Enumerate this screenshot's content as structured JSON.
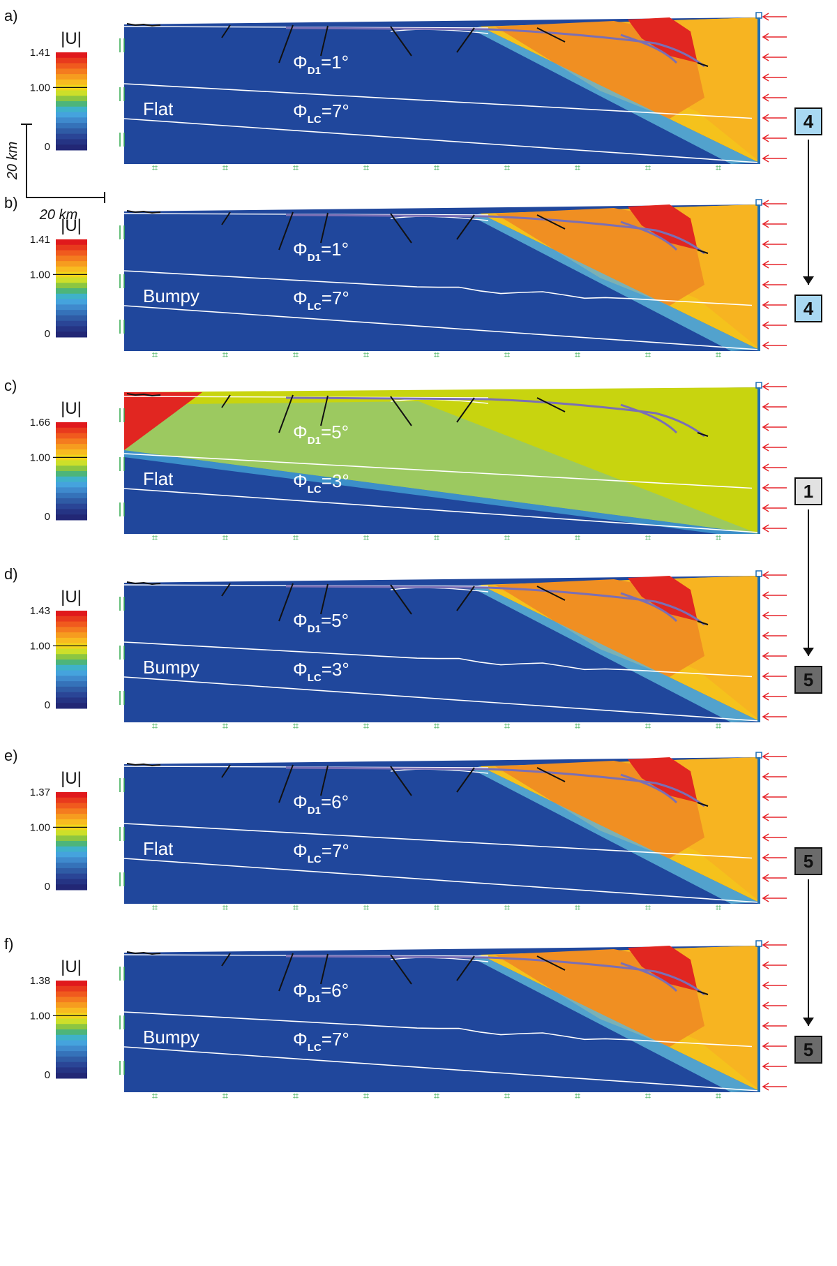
{
  "colorbar_title": "|U|",
  "colorbar_mid_label": "1.00",
  "colorbar_min_label": "0",
  "scale_bar": {
    "vertical_label": "20 km",
    "horizontal_label": "20 km"
  },
  "colors": {
    "mantle_blue": "#20479c",
    "deformed_orange": "#f08f22",
    "deformed_yellow": "#f7b421",
    "wedge_green": "#c8d40f",
    "hot_red": "#e12621",
    "backstop_blue": "#1f6fb5",
    "push_arrow": "#e6262d",
    "base_marker": "#2fa84a"
  },
  "panels": [
    {
      "letter": "a)",
      "colorbar_max": "1.41",
      "interface": "Flat",
      "phi_d1": "Φ",
      "phi_d1_sub": "D1",
      "phi_d1_val": "=1°",
      "phi_lc": "Φ",
      "phi_lc_sub": "LC",
      "phi_lc_val": "=7°",
      "stage": "4",
      "stage_color": "#a9d8f2",
      "scheme": "normal"
    },
    {
      "letter": "b)",
      "colorbar_max": "1.41",
      "interface": "Bumpy",
      "phi_d1": "Φ",
      "phi_d1_sub": "D1",
      "phi_d1_val": "=1°",
      "phi_lc": "Φ",
      "phi_lc_sub": "LC",
      "phi_lc_val": "=7°",
      "stage": "4",
      "stage_color": "#a9d8f2",
      "scheme": "normal"
    },
    {
      "letter": "c)",
      "colorbar_max": "1.66",
      "interface": "Flat",
      "phi_d1": "Φ",
      "phi_d1_sub": "D1",
      "phi_d1_val": "=5°",
      "phi_lc": "Φ",
      "phi_lc_sub": "LC",
      "phi_lc_val": "=3°",
      "stage": "1",
      "stage_color": "#e2e2e2",
      "scheme": "green"
    },
    {
      "letter": "d)",
      "colorbar_max": "1.43",
      "interface": "Bumpy",
      "phi_d1": "Φ",
      "phi_d1_sub": "D1",
      "phi_d1_val": "=5°",
      "phi_lc": "Φ",
      "phi_lc_sub": "LC",
      "phi_lc_val": "=3°",
      "stage": "5",
      "stage_color": "#6b6b6b",
      "scheme": "normal"
    },
    {
      "letter": "e)",
      "colorbar_max": "1.37",
      "interface": "Flat",
      "phi_d1": "Φ",
      "phi_d1_sub": "D1",
      "phi_d1_val": "=6°",
      "phi_lc": "Φ",
      "phi_lc_sub": "LC",
      "phi_lc_val": "=7°",
      "stage": "5",
      "stage_color": "#6b6b6b",
      "scheme": "normal"
    },
    {
      "letter": "f)",
      "colorbar_max": "1.38",
      "interface": "Bumpy",
      "phi_d1": "Φ",
      "phi_d1_sub": "D1",
      "phi_d1_val": "=6°",
      "phi_lc": "Φ",
      "phi_lc_sub": "LC",
      "phi_lc_val": "=7°",
      "stage": "5",
      "stage_color": "#6b6b6b",
      "scheme": "normal"
    }
  ]
}
